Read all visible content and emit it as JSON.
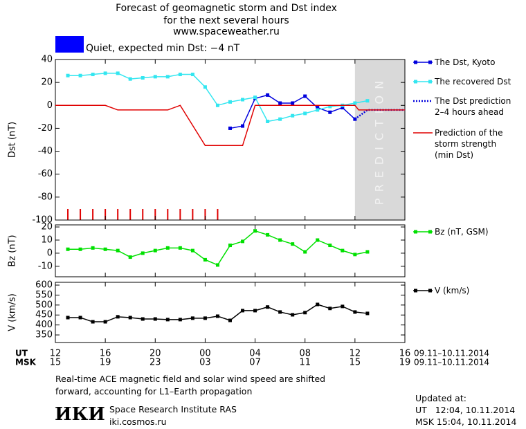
{
  "header": {
    "title": [
      "Forecast of geomagnetic storm and Dst index",
      "for the next several hours",
      "www.spaceweather.ru"
    ]
  },
  "status": {
    "color": "#0000ff",
    "text": "Quiet, expected min Dst: −4 nT"
  },
  "x_axis": {
    "xlim": [
      0,
      28
    ],
    "xticks": [
      0,
      4,
      8,
      12,
      16,
      20,
      24,
      28
    ],
    "rows": [
      {
        "name": "UT",
        "labels": [
          "12",
          "16",
          "20",
          "00",
          "04",
          "08",
          "12",
          "16"
        ],
        "date": "09.11–10.11.2014"
      },
      {
        "name": "MSK",
        "labels": [
          "15",
          "19",
          "23",
          "03",
          "07",
          "11",
          "15",
          "19"
        ],
        "date": "09.11–10.11.2014"
      }
    ]
  },
  "chart_data": [
    {
      "type": "line",
      "y_label": "Dst (nT)",
      "ylim": [
        -100,
        40
      ],
      "yticks": [
        40,
        20,
        0,
        -20,
        -40,
        -60,
        -80,
        -100
      ],
      "shade": {
        "xlim": [
          24,
          28
        ],
        "label": "PREDICTION",
        "color": "#d9d9d9"
      },
      "series": [
        {
          "name": "The Dst, Kyoto",
          "color": "#0000dd",
          "marker": "square",
          "dashed": false,
          "x": [
            14,
            15,
            16,
            17,
            18,
            19,
            20,
            21,
            22,
            23,
            24
          ],
          "values": [
            -20,
            -18,
            6,
            9,
            2,
            2,
            8,
            -2,
            -6,
            -2,
            -12
          ]
        },
        {
          "name": "The recovered Dst",
          "color": "#33e6f0",
          "marker": "square",
          "dashed": false,
          "x": [
            1,
            2,
            3,
            4,
            5,
            6,
            7,
            8,
            9,
            10,
            11,
            12,
            13,
            14,
            15,
            16,
            17,
            18,
            19,
            20,
            21,
            22,
            23,
            24,
            25
          ],
          "values": [
            26,
            26,
            27,
            28,
            28,
            23,
            24,
            25,
            25,
            27,
            27,
            16,
            0,
            3,
            5,
            7,
            -14,
            -12,
            -9,
            -7,
            -4,
            -1,
            0,
            2,
            4
          ]
        },
        {
          "name": "The Dst prediction\n2–4 hours ahead",
          "color": "#0000dd",
          "marker": null,
          "dashed": true,
          "x": [
            24,
            25,
            26,
            27,
            28
          ],
          "values": [
            -12,
            -4,
            -4,
            -4,
            -4
          ]
        },
        {
          "name": "Prediction of the\nstorm strength\n(min Dst)",
          "color": "#e00000",
          "marker": null,
          "dashed": false,
          "x": [
            0,
            4,
            5,
            9,
            10,
            12,
            15,
            16,
            24,
            24.3,
            28
          ],
          "values": [
            0,
            0,
            -4,
            -4,
            0,
            -35,
            -35,
            0,
            0,
            -4,
            -4
          ]
        }
      ]
    },
    {
      "type": "line",
      "y_label": "Bz (nT)",
      "ylim": [
        -18,
        21.6
      ],
      "yticks": [
        20,
        10,
        0,
        -10
      ],
      "series": [
        {
          "name": "Bz (nT, GSM)",
          "color": "#00e000",
          "marker": "square",
          "dashed": false,
          "x": [
            1,
            2,
            3,
            4,
            5,
            6,
            7,
            8,
            9,
            10,
            11,
            12,
            13,
            14,
            15,
            16,
            17,
            18,
            19,
            20,
            21,
            22,
            23,
            24,
            25
          ],
          "values": [
            3,
            3,
            4,
            3,
            2,
            -3,
            0,
            2,
            4,
            4,
            2,
            -5,
            -9,
            6,
            9,
            17,
            14,
            10,
            7,
            1,
            10,
            6,
            2,
            -1,
            1
          ]
        }
      ]
    },
    {
      "type": "line",
      "y_label": "V (km/s)",
      "ylim": [
        312,
        614
      ],
      "yticks": [
        600,
        550,
        500,
        450,
        400,
        350
      ],
      "series": [
        {
          "name": "V (km/s)",
          "color": "#000000",
          "marker": "square",
          "dashed": false,
          "x": [
            1,
            2,
            3,
            4,
            5,
            6,
            7,
            8,
            9,
            10,
            11,
            12,
            13,
            14,
            15,
            16,
            17,
            18,
            19,
            20,
            21,
            22,
            23,
            24,
            25
          ],
          "values": [
            437,
            437,
            416,
            416,
            441,
            437,
            430,
            430,
            427,
            427,
            434,
            434,
            444,
            423,
            472,
            472,
            490,
            465,
            451,
            462,
            503,
            483,
            493,
            465,
            458
          ]
        }
      ]
    }
  ],
  "footer": {
    "note": [
      "Real-time ACE magnetic field and solar wind speed are shifted",
      "forward, accounting for L1–Earth propagation"
    ],
    "logo": "ИКИ",
    "institute": "Space Research Institute RAS",
    "site": "iki.cosmos.ru",
    "updated": [
      "Updated at:",
      "UT   12:04, 10.11.2014",
      "MSK 15:04, 10.11.2014"
    ]
  }
}
